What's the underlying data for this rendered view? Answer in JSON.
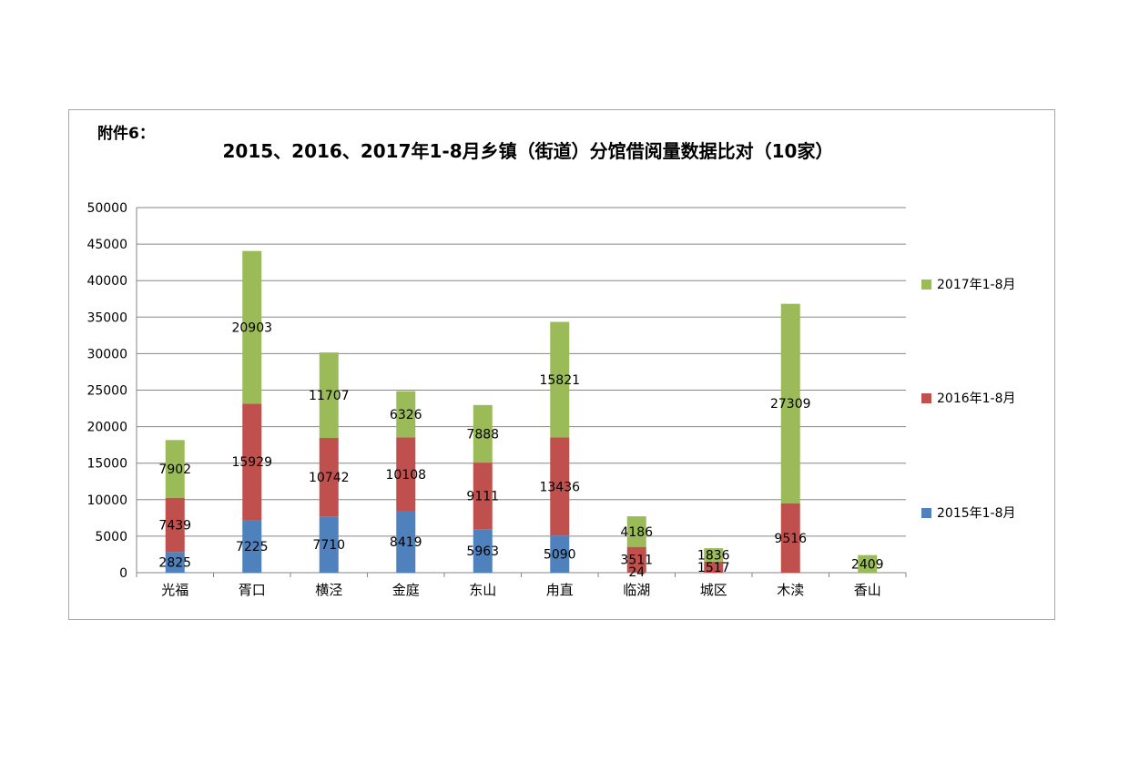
{
  "attachment_label": "附件6：",
  "colors": {
    "series_2015": "#4f81bd",
    "series_2016": "#c0504d",
    "series_2017": "#9bbb59",
    "grid": "#868686",
    "frame": "#a6a6a6"
  },
  "chart_data": {
    "type": "bar",
    "stacked": true,
    "title": "2015、2016、2017年1-8月乡镇（街道）分馆借阅量数据比对（10家）",
    "xlabel": "",
    "ylabel": "",
    "ylim": [
      0,
      50000
    ],
    "yticks": [
      0,
      5000,
      10000,
      15000,
      20000,
      25000,
      30000,
      35000,
      40000,
      45000,
      50000
    ],
    "grid": true,
    "legend_position": "right",
    "categories": [
      "光福",
      "胥口",
      "横泾",
      "金庭",
      "东山",
      "甪直",
      "临湖",
      "城区",
      "木渎",
      "香山"
    ],
    "series": [
      {
        "name": "2015年1-8月",
        "color": "#4f81bd",
        "values": [
          2825,
          7225,
          7710,
          8419,
          5963,
          5090,
          24,
          null,
          null,
          null
        ]
      },
      {
        "name": "2016年1-8月",
        "color": "#c0504d",
        "values": [
          7439,
          15929,
          10742,
          10108,
          9111,
          13436,
          3511,
          1517,
          9516,
          null
        ]
      },
      {
        "name": "2017年1-8月",
        "color": "#9bbb59",
        "values": [
          7902,
          20903,
          11707,
          6326,
          7888,
          15821,
          4186,
          1836,
          27309,
          2409
        ]
      }
    ]
  }
}
